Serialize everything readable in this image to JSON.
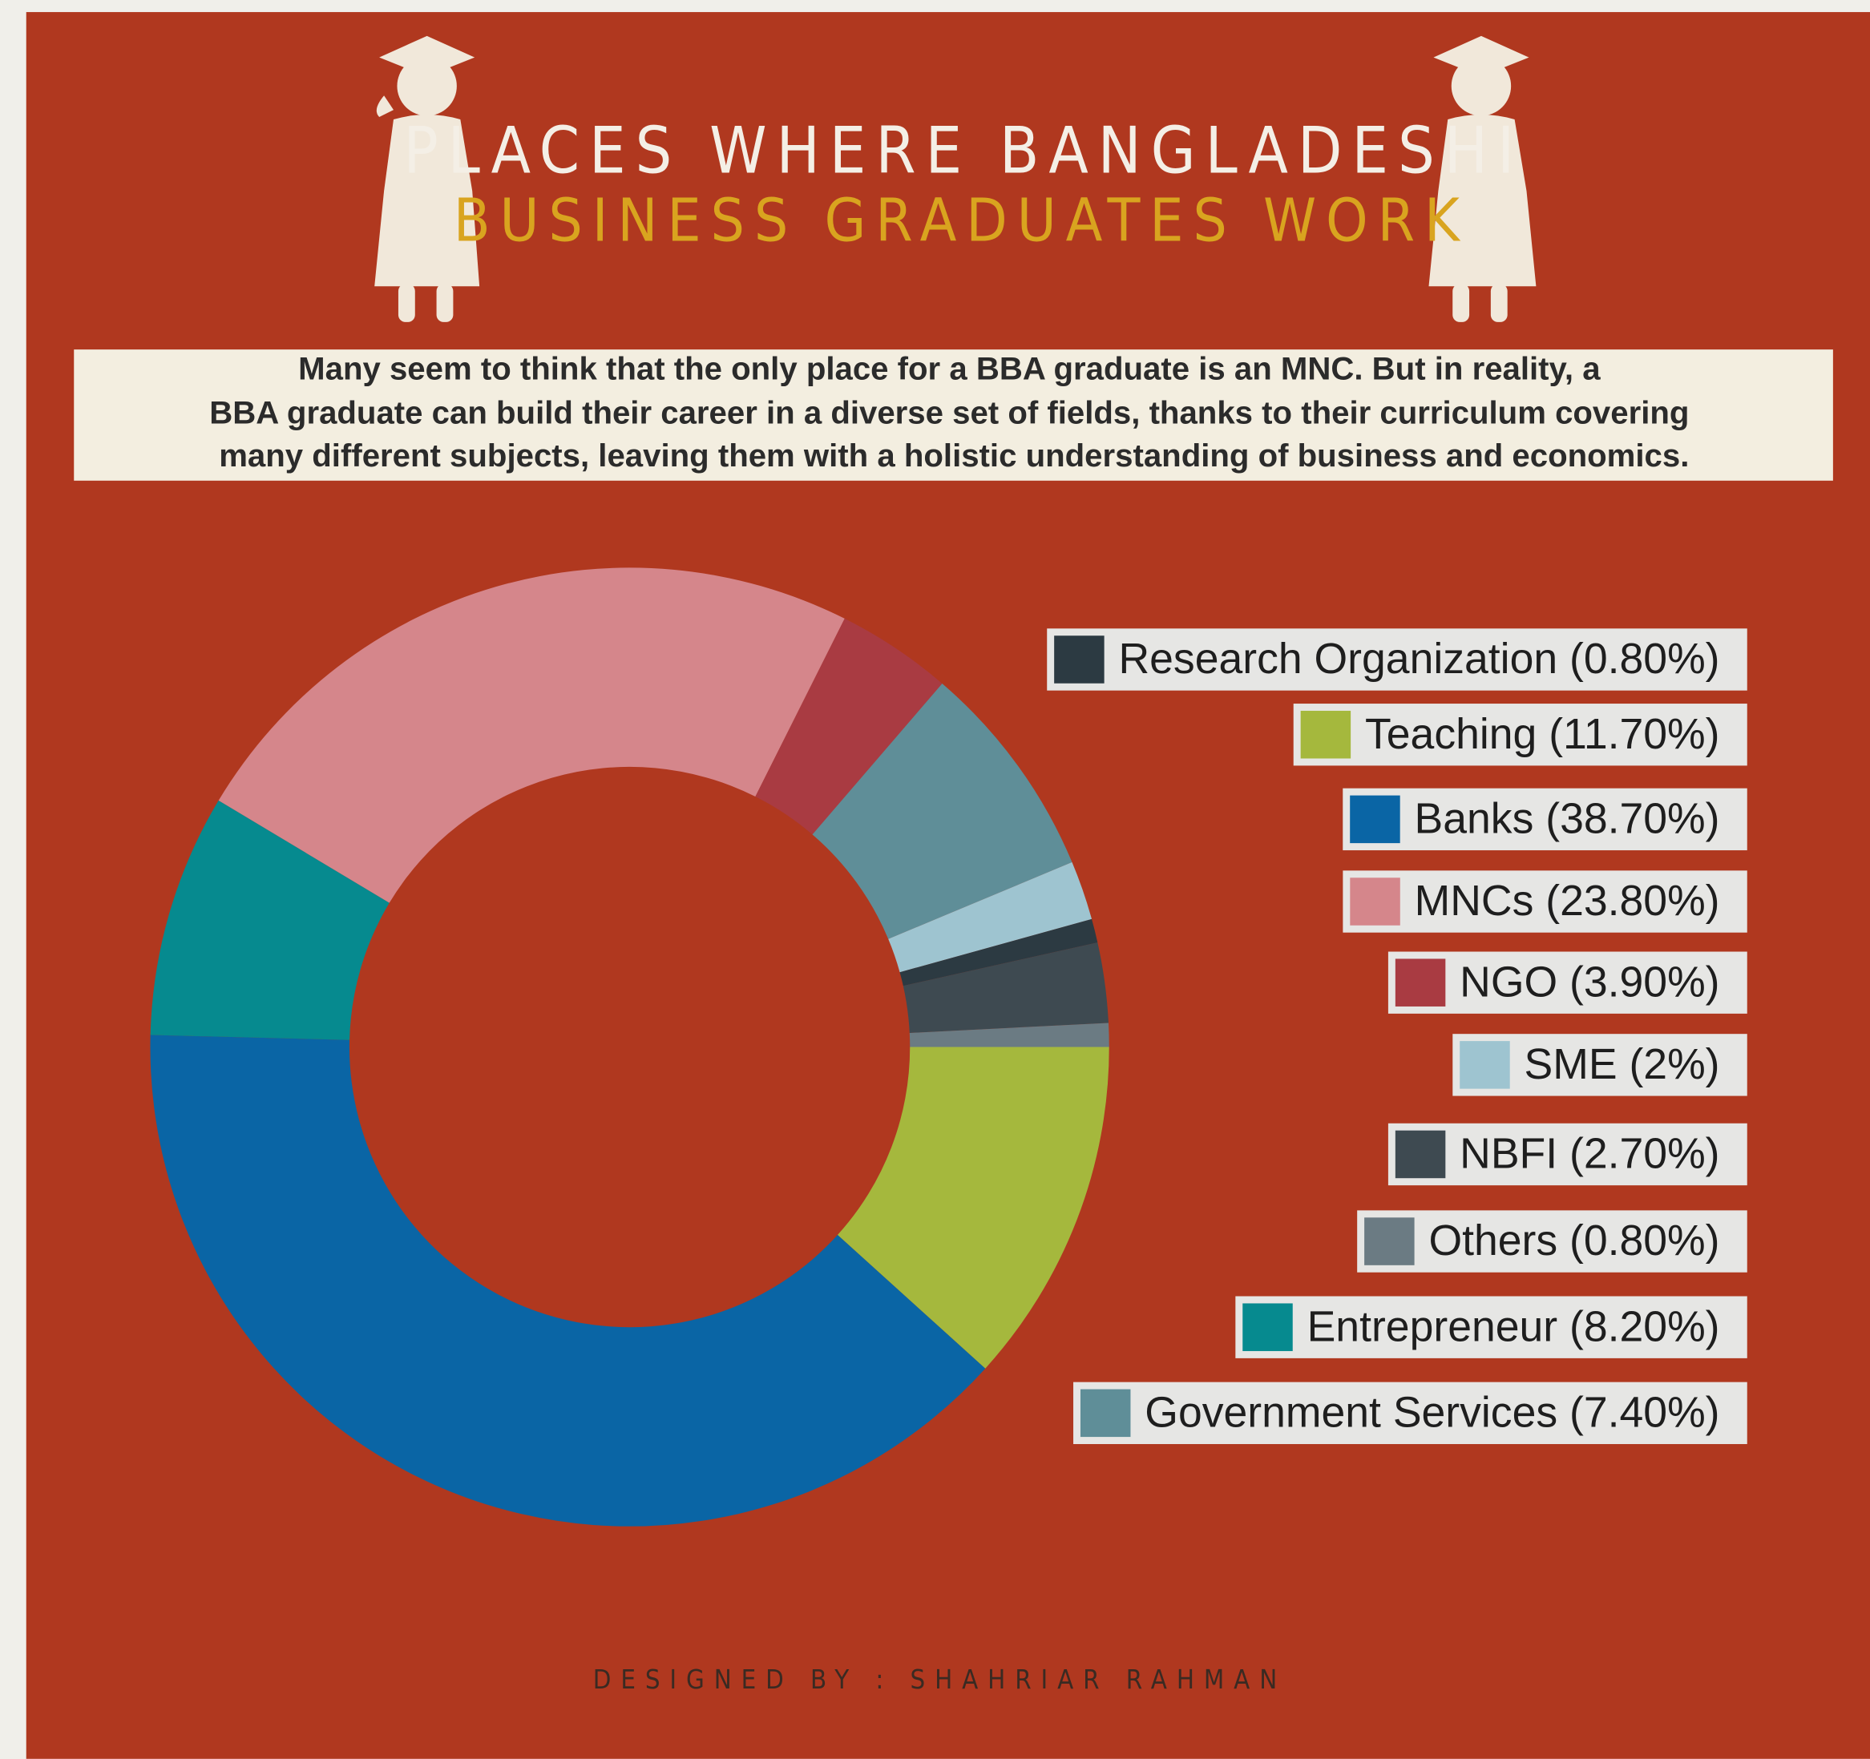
{
  "chart_data": {
    "type": "donut",
    "title": "PLACES WHERE BANGLADESHI",
    "subtitle": "BUSINESS GRADUATES WORK",
    "description": [
      "Many seem to think that the only place for a BBA graduate is an MNC. But in reality, a",
      "BBA graduate can build their career in a diverse set of fields, thanks to their curriculum covering",
      "many different subjects, leaving them with a holistic understanding of business and economics."
    ],
    "credit": "DESIGNED BY : SHAHRIAR RAHMAN",
    "categories": [
      "Research Organization (0.80%)",
      "Teaching (11.70%)",
      "Banks (38.70%)",
      "MNCs (23.80%)",
      "NGO (3.90%)",
      "SME (2%)",
      "NBFI (2.70%)",
      "Others (0.80%)",
      "Entrepreneur (8.20%)",
      "Government Services (7.40%)"
    ],
    "values": [
      0.8,
      11.7,
      38.7,
      23.8,
      3.9,
      2,
      2.7,
      0.8,
      8.2,
      7.4
    ],
    "colors": [
      "#2c3a42",
      "#a5b83d",
      "#0a65a5",
      "#d5868b",
      "#a93b42",
      "#9ec4d0",
      "#3e4a51",
      "#6b7b83",
      "#068a8f",
      "#5f8e98"
    ],
    "legend": "right"
  }
}
